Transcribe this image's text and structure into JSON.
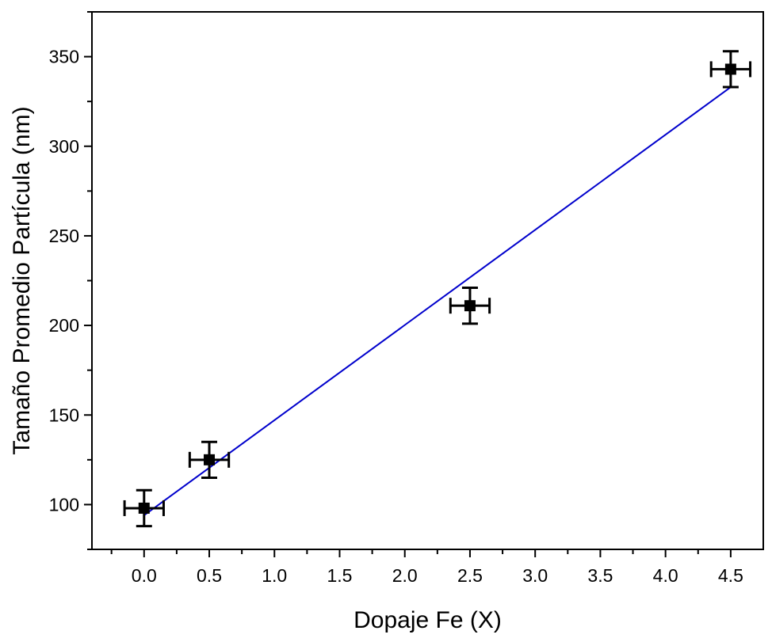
{
  "chart_data": {
    "type": "scatter",
    "title": "",
    "xlabel": "Dopaje Fe (X)",
    "ylabel": "Tamaño Promedio Partícula (nm)",
    "xlim": [
      -0.4,
      4.75
    ],
    "ylim": [
      75,
      375
    ],
    "x_ticks": [
      0.0,
      0.5,
      1.0,
      1.5,
      2.0,
      2.5,
      3.0,
      3.5,
      4.0,
      4.5
    ],
    "x_tick_labels": [
      "0.0",
      "0.5",
      "1.0",
      "1.5",
      "2.0",
      "2.5",
      "3.0",
      "3.5",
      "4.0",
      "4.5"
    ],
    "y_ticks": [
      100,
      150,
      200,
      250,
      300,
      350
    ],
    "y_tick_labels": [
      "100",
      "150",
      "200",
      "250",
      "300",
      "350"
    ],
    "grid": false,
    "legend": "none",
    "series": [
      {
        "type": "scatter",
        "marker": "square",
        "color": "#000000",
        "x": [
          0.0,
          0.5,
          2.5,
          4.5
        ],
        "y": [
          98,
          125,
          211,
          343
        ],
        "x_error": [
          0.15,
          0.15,
          0.15,
          0.15
        ],
        "y_error": [
          10,
          10,
          10,
          10
        ]
      },
      {
        "type": "line",
        "fit": "linear",
        "color": "#0000cc",
        "x": [
          0.0,
          4.5
        ],
        "y": [
          94,
          333
        ]
      }
    ]
  }
}
